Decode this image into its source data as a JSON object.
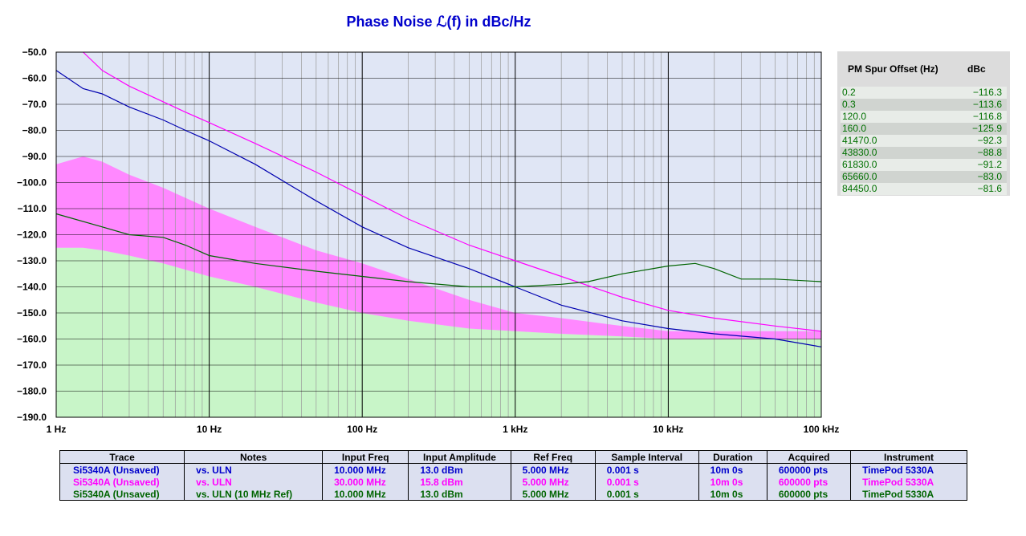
{
  "chart_data": {
    "type": "line",
    "title": "Phase Noise ℒ(f) in dBc/Hz",
    "x_scale": "log",
    "xlim": [
      1,
      100000
    ],
    "ylim": [
      -190,
      -50
    ],
    "x_ticks": [
      1,
      10,
      100,
      1000,
      10000,
      100000
    ],
    "x_tick_labels": [
      "1 Hz",
      "10 Hz",
      "100 Hz",
      "1 kHz",
      "10 kHz",
      "100 kHz"
    ],
    "y_ticks": [
      -50,
      -60,
      -70,
      -80,
      -90,
      -100,
      -110,
      -120,
      -130,
      -140,
      -150,
      -160,
      -170,
      -180,
      -190
    ],
    "y_tick_labels": [
      "−50.0",
      "−60.0",
      "−70.0",
      "−80.0",
      "−90.0",
      "−100.0",
      "−110.0",
      "−120.0",
      "−130.0",
      "−140.0",
      "−150.0",
      "−160.0",
      "−170.0",
      "−180.0",
      "−190.0"
    ],
    "grid": true,
    "plot_background": "#e0e6f5",
    "series": [
      {
        "color": "#ff00ff",
        "x": [
          1.5,
          2,
          3,
          5,
          7,
          10,
          20,
          50,
          100,
          200,
          500,
          1000,
          2000,
          5000,
          10000,
          20000,
          50000,
          100000
        ],
        "y": [
          -50,
          -57,
          -63,
          -69,
          -73,
          -77,
          -85,
          -96,
          -105,
          -114,
          -124,
          -130,
          -136,
          -144,
          -149,
          -152,
          -155,
          -157
        ]
      },
      {
        "color": "#0000b0",
        "x": [
          1,
          1.5,
          2,
          3,
          5,
          7,
          10,
          20,
          50,
          100,
          200,
          500,
          1000,
          2000,
          5000,
          10000,
          20000,
          50000,
          100000
        ],
        "y": [
          -57,
          -64,
          -66,
          -71,
          -76,
          -80,
          -84,
          -93,
          -107,
          -117,
          -125,
          -133,
          -140,
          -147,
          -153,
          -156,
          -158,
          -160,
          -163
        ]
      },
      {
        "color": "#006400",
        "x": [
          1,
          2,
          3,
          5,
          7,
          10,
          20,
          50,
          100,
          200,
          500,
          1000,
          2000,
          3000,
          5000,
          10000,
          15000,
          20000,
          30000,
          50000,
          100000
        ],
        "y": [
          -112,
          -117,
          -120,
          -121,
          -124,
          -128,
          -131,
          -134,
          -136,
          -138,
          -140,
          -140,
          -139,
          -138,
          -135,
          -132,
          -131,
          -133,
          -137,
          -137,
          -138
        ]
      }
    ],
    "limit_band": {
      "color": "#ff88ff",
      "x": [
        1,
        1.5,
        2,
        3,
        5,
        10,
        20,
        50,
        100,
        200,
        500,
        1000,
        2000,
        5000,
        10000,
        100000
      ],
      "upper": [
        -93,
        -90,
        -92,
        -97,
        -102,
        -110,
        -117,
        -126,
        -131,
        -137,
        -145,
        -150,
        -152,
        -155,
        -157,
        -157
      ],
      "lower": [
        -125,
        -125,
        -126,
        -128,
        -131,
        -136,
        -140,
        -146,
        -150,
        -153,
        -156,
        -157,
        -158,
        -159,
        -160,
        -160
      ]
    },
    "floor_region": {
      "color": "#c8f5c8",
      "x": [
        1,
        1.5,
        2,
        3,
        5,
        10,
        20,
        50,
        100,
        200,
        500,
        1000,
        2000,
        5000,
        10000,
        100000
      ],
      "y": [
        -125,
        -125,
        -126,
        -128,
        -131,
        -136,
        -140,
        -146,
        -150,
        -153,
        -156,
        -157,
        -158,
        -159,
        -160,
        -160
      ]
    }
  },
  "spur_table": {
    "header_offset": "PM Spur Offset (Hz)",
    "header_dbc": "dBc",
    "rows": [
      {
        "offset": "0.2",
        "dbc": "−116.3"
      },
      {
        "offset": "0.3",
        "dbc": "−113.6"
      },
      {
        "offset": "120.0",
        "dbc": "−116.8"
      },
      {
        "offset": "160.0",
        "dbc": "−125.9"
      },
      {
        "offset": "41470.0",
        "dbc": "−92.3"
      },
      {
        "offset": "43830.0",
        "dbc": "−88.8"
      },
      {
        "offset": "61830.0",
        "dbc": "−91.2"
      },
      {
        "offset": "65660.0",
        "dbc": "−83.0"
      },
      {
        "offset": "84450.0",
        "dbc": "−81.6"
      }
    ]
  },
  "legend": {
    "headers": [
      "Trace",
      "Notes",
      "Input Freq",
      "Input Amplitude",
      "Ref Freq",
      "Sample Interval",
      "Duration",
      "Acquired",
      "Instrument"
    ],
    "rows": [
      {
        "color": "#0000cc",
        "cells": [
          "Si5340A (Unsaved)",
          "vs. ULN",
          "10.000 MHz",
          "13.0 dBm",
          "5.000 MHz",
          "0.001 s",
          "10m 0s",
          "600000 pts",
          "TimePod 5330A"
        ]
      },
      {
        "color": "#ff00ff",
        "cells": [
          "Si5340A (Unsaved)",
          "vs. ULN",
          "30.000 MHz",
          "15.8 dBm",
          "5.000 MHz",
          "0.001 s",
          "10m 0s",
          "600000 pts",
          "TimePod 5330A"
        ]
      },
      {
        "color": "#006400",
        "cells": [
          "Si5340A (Unsaved)",
          "vs. ULN (10 MHz Ref)",
          "10.000 MHz",
          "13.0 dBm",
          "5.000 MHz",
          "0.001 s",
          "10m 0s",
          "600000 pts",
          "TimePod 5330A"
        ]
      }
    ]
  }
}
